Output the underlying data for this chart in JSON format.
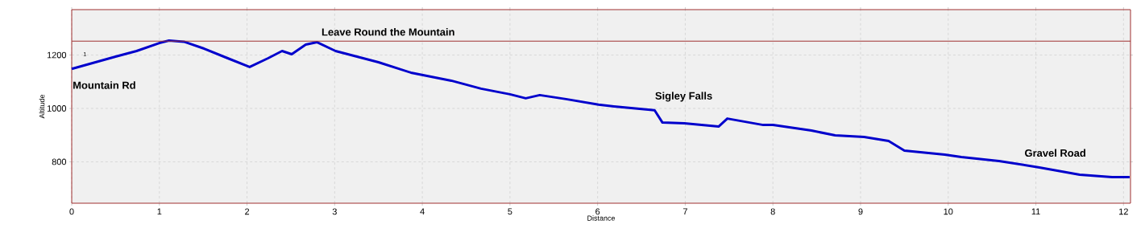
{
  "chart_data": {
    "type": "line",
    "xlabel": "Distance",
    "ylabel": "Altitude",
    "xlim": [
      0,
      12.08
    ],
    "ylim": [
      645,
      1370
    ],
    "xticks": [
      0,
      1,
      2,
      3,
      4,
      5,
      6,
      7,
      8,
      9,
      10,
      11,
      12
    ],
    "yticks": [
      800,
      1000,
      1200
    ],
    "grid": true,
    "marker": "none",
    "line_style": "solid",
    "ref_lines": [
      {
        "axis": "y",
        "value": 1252,
        "color": "#a03030"
      }
    ],
    "annotations": [
      "1",
      "Mountain Rd",
      "Leave Round the Mountain",
      "Sigley Falls",
      "Gravel Road"
    ],
    "series": [
      {
        "color": "#0000cc",
        "x": [
          0,
          0.5,
          0.74,
          1.0,
          1.11,
          1.28,
          1.51,
          1.78,
          2.03,
          2.24,
          2.4,
          2.51,
          2.67,
          2.8,
          3.01,
          3.5,
          3.87,
          4.33,
          4.67,
          5.0,
          5.18,
          5.34,
          5.64,
          6.01,
          6.26,
          6.65,
          6.74,
          6.99,
          7.38,
          7.48,
          7.89,
          8.0,
          8.44,
          8.71,
          9.04,
          9.32,
          9.5,
          9.96,
          10.15,
          10.58,
          11.04,
          11.5,
          11.87,
          12.07
        ],
        "values": [
          1148,
          1194,
          1215,
          1245,
          1254,
          1250,
          1224,
          1188,
          1155,
          1188,
          1215,
          1203,
          1239,
          1248,
          1215,
          1173,
          1134,
          1104,
          1074,
          1053,
          1038,
          1050,
          1035,
          1014,
          1005,
          993,
          947,
          944,
          932,
          962,
          938,
          938,
          917,
          899,
          893,
          878,
          842,
          827,
          818,
          803,
          779,
          752,
          743,
          743
        ]
      }
    ]
  }
}
